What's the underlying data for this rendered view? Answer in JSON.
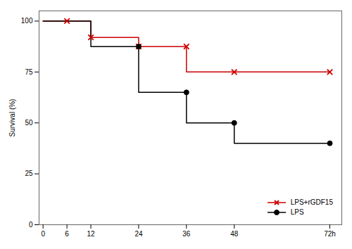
{
  "chart_data": {
    "type": "line",
    "ylabel": "Survival (%)",
    "xlim": [
      -1,
      75
    ],
    "ylim": [
      0,
      105
    ],
    "xticks": [
      0,
      6,
      12,
      24,
      36,
      48,
      {
        "value": 72,
        "label": "72h"
      }
    ],
    "yticks": [
      0,
      25,
      50,
      75,
      100
    ],
    "grid": false,
    "legend": "lower right",
    "series": [
      {
        "name": "LPS+rGDF15",
        "color": "#cc0000",
        "marker": "x",
        "x": [
          0,
          12,
          12,
          24,
          24,
          36,
          36,
          72
        ],
        "values": [
          100,
          100,
          92,
          92,
          87.5,
          87.5,
          75,
          75
        ],
        "markers": {
          "x": [
            6,
            12,
            24,
            36,
            48,
            72
          ],
          "values": [
            100,
            92,
            87.5,
            87.5,
            75,
            75
          ]
        }
      },
      {
        "name": "LPS",
        "color": "#000000",
        "marker": "circle",
        "x": [
          0,
          12,
          12,
          24,
          24,
          36,
          36,
          48,
          48,
          72
        ],
        "values": [
          100,
          100,
          87.5,
          87.5,
          65,
          65,
          50,
          50,
          40,
          40
        ],
        "markers": {
          "x": [
            24,
            36,
            48,
            72
          ],
          "values": [
            87.5,
            65,
            50,
            40
          ]
        }
      }
    ]
  }
}
